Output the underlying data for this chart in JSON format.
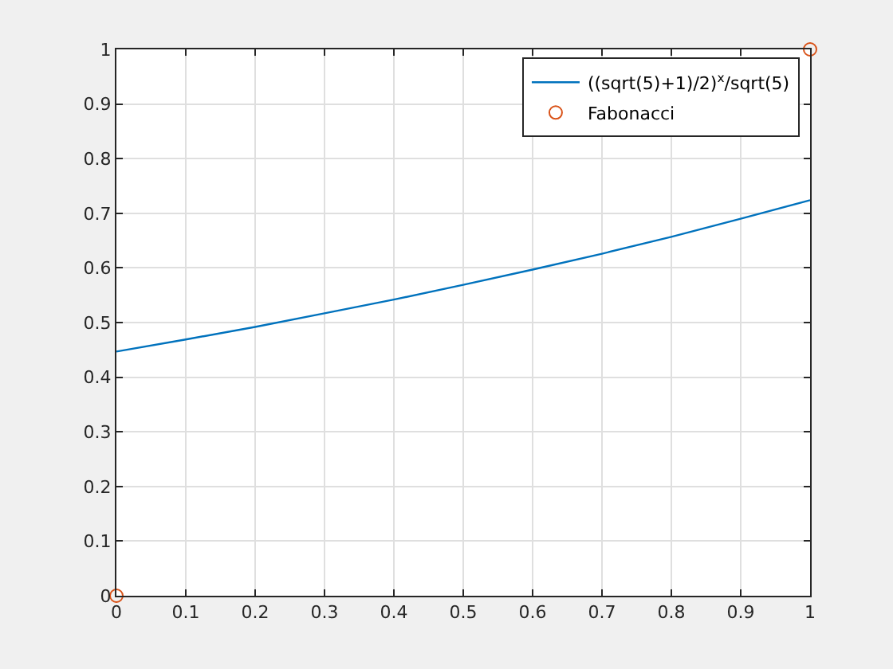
{
  "chart_data": {
    "type": "line",
    "x": [
      0,
      0.1,
      0.2,
      0.3,
      0.4,
      0.5,
      0.6,
      0.7,
      0.8,
      0.9,
      1
    ],
    "series": [
      {
        "name": "((sqrt(5)+1)/2)$^{x}$/sqrt(5)",
        "color": "#0072bd",
        "values": [
          0.447,
          0.469,
          0.492,
          0.517,
          0.542,
          0.569,
          0.597,
          0.626,
          0.657,
          0.69,
          0.724
        ]
      },
      {
        "name": "Fabonacci",
        "color": "#d95319",
        "type": "scatter",
        "marker": "circle",
        "x": [
          0,
          1
        ],
        "values": [
          0,
          1
        ]
      }
    ],
    "xlim": [
      0,
      1
    ],
    "ylim": [
      0,
      1
    ],
    "xticks": [
      0,
      0.1,
      0.2,
      0.3,
      0.4,
      0.5,
      0.6,
      0.7,
      0.8,
      0.9,
      1
    ],
    "yticks": [
      0,
      0.1,
      0.2,
      0.3,
      0.4,
      0.5,
      0.6,
      0.7,
      0.8,
      0.9,
      1
    ],
    "grid": true,
    "legend": "top right"
  }
}
